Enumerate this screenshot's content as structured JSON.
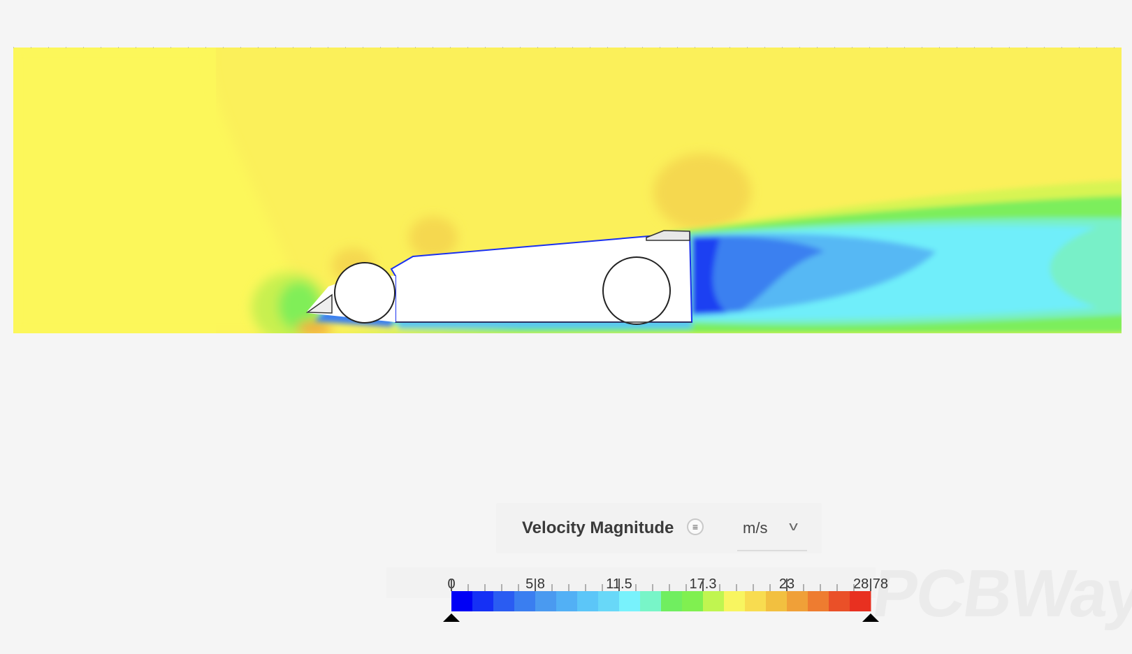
{
  "legend": {
    "title": "Velocity Magnitude",
    "info_icon": "menu-lines-icon",
    "unit": "m/s",
    "unit_dropdown_icon": "chevron-down-icon",
    "ticks": [
      "0",
      "5.8",
      "11.5",
      "17.3",
      "23",
      "28.78"
    ],
    "min": 0,
    "max": 28.78,
    "colors": [
      "#0000f5",
      "#1530f5",
      "#2a5cf2",
      "#3a7ef0",
      "#4a9af0",
      "#52b0f5",
      "#5cc6f8",
      "#68d8f8",
      "#78f2fc",
      "#78f5c8",
      "#70ee60",
      "#80f050",
      "#c0f550",
      "#f8f560",
      "#f8dc50",
      "#f2c040",
      "#f0a038",
      "#ee7c30",
      "#ea5028",
      "#e83020"
    ]
  },
  "watermark": "PCBWay"
}
